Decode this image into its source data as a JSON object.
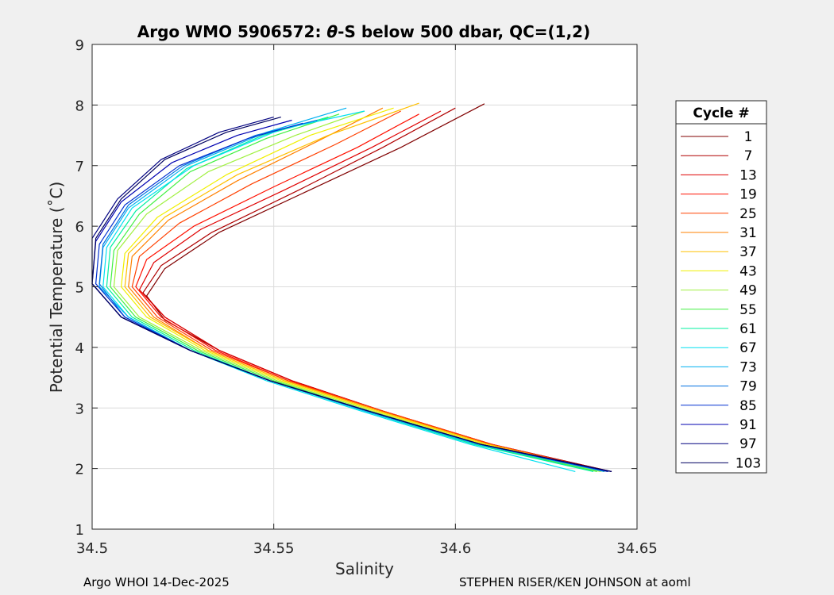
{
  "chart_data": {
    "type": "line",
    "title_prefix": "Argo WMO 5906572: ",
    "title_symbol": "θ",
    "title_suffix": "-S below 500 dbar,  QC=(1,2)",
    "xlabel": "Salinity",
    "ylabel": "Potential Temperature (˚C)",
    "xlim": [
      34.5,
      34.65
    ],
    "ylim": [
      1,
      9
    ],
    "xticks": [
      34.5,
      34.55,
      34.6,
      34.65
    ],
    "xtick_labels": [
      "34.5",
      "34.55",
      "34.6",
      "34.65"
    ],
    "yticks": [
      1,
      2,
      3,
      4,
      5,
      6,
      7,
      8,
      9
    ],
    "ytick_labels": [
      "1",
      "2",
      "3",
      "4",
      "5",
      "6",
      "7",
      "8",
      "9"
    ],
    "grid": true,
    "legend_title": "Cycle #",
    "legend_position": "right",
    "legend": [
      {
        "label": "1",
        "color": "#800000"
      },
      {
        "label": "7",
        "color": "#b00000"
      },
      {
        "label": "13",
        "color": "#e00000"
      },
      {
        "label": "19",
        "color": "#ff1000"
      },
      {
        "label": "25",
        "color": "#ff4000"
      },
      {
        "label": "31",
        "color": "#ff8000"
      },
      {
        "label": "37",
        "color": "#ffc000"
      },
      {
        "label": "43",
        "color": "#f0f000"
      },
      {
        "label": "49",
        "color": "#a0f040"
      },
      {
        "label": "55",
        "color": "#40f040"
      },
      {
        "label": "61",
        "color": "#00f0a0"
      },
      {
        "label": "67",
        "color": "#00e0f0"
      },
      {
        "label": "73",
        "color": "#00b0f0"
      },
      {
        "label": "79",
        "color": "#0070e0"
      },
      {
        "label": "85",
        "color": "#0030d0"
      },
      {
        "label": "91",
        "color": "#0000b0"
      },
      {
        "label": "97",
        "color": "#000080"
      },
      {
        "label": "103",
        "color": "#000060"
      }
    ],
    "series": [
      {
        "name": "1",
        "color": "#800000",
        "points": [
          [
            34.643,
            1.95
          ],
          [
            34.61,
            2.4
          ],
          [
            34.58,
            2.95
          ],
          [
            34.555,
            3.45
          ],
          [
            34.535,
            3.95
          ],
          [
            34.52,
            4.45
          ],
          [
            34.515,
            4.85
          ],
          [
            34.52,
            5.3
          ],
          [
            34.535,
            5.9
          ],
          [
            34.56,
            6.6
          ],
          [
            34.585,
            7.3
          ],
          [
            34.608,
            8.02
          ]
        ]
      },
      {
        "name": "7",
        "color": "#b00000",
        "points": [
          [
            34.643,
            1.95
          ],
          [
            34.61,
            2.4
          ],
          [
            34.58,
            2.95
          ],
          [
            34.555,
            3.45
          ],
          [
            34.535,
            3.95
          ],
          [
            34.52,
            4.5
          ],
          [
            34.514,
            4.9
          ],
          [
            34.519,
            5.35
          ],
          [
            34.533,
            5.9
          ],
          [
            34.557,
            6.6
          ],
          [
            34.58,
            7.3
          ],
          [
            34.6,
            7.95
          ]
        ]
      },
      {
        "name": "13",
        "color": "#e00000",
        "points": [
          [
            34.642,
            1.95
          ],
          [
            34.61,
            2.4
          ],
          [
            34.58,
            2.95
          ],
          [
            34.555,
            3.45
          ],
          [
            34.535,
            3.95
          ],
          [
            34.52,
            4.5
          ],
          [
            34.513,
            4.95
          ],
          [
            34.517,
            5.4
          ],
          [
            34.53,
            5.95
          ],
          [
            34.553,
            6.6
          ],
          [
            34.577,
            7.3
          ],
          [
            34.596,
            7.9
          ]
        ]
      },
      {
        "name": "19",
        "color": "#ff1000",
        "points": [
          [
            34.642,
            1.95
          ],
          [
            34.61,
            2.4
          ],
          [
            34.58,
            2.95
          ],
          [
            34.554,
            3.45
          ],
          [
            34.534,
            3.95
          ],
          [
            34.519,
            4.5
          ],
          [
            34.512,
            5.0
          ],
          [
            34.515,
            5.45
          ],
          [
            34.528,
            6.0
          ],
          [
            34.55,
            6.65
          ],
          [
            34.573,
            7.3
          ],
          [
            34.59,
            7.85
          ]
        ]
      },
      {
        "name": "25",
        "color": "#ff4000",
        "points": [
          [
            34.642,
            1.95
          ],
          [
            34.61,
            2.4
          ],
          [
            34.58,
            2.95
          ],
          [
            34.554,
            3.45
          ],
          [
            34.533,
            3.95
          ],
          [
            34.518,
            4.5
          ],
          [
            34.511,
            5.0
          ],
          [
            34.513,
            5.5
          ],
          [
            34.524,
            6.05
          ],
          [
            34.544,
            6.7
          ],
          [
            34.567,
            7.35
          ],
          [
            34.585,
            7.9
          ]
        ]
      },
      {
        "name": "31",
        "color": "#ff8000",
        "points": [
          [
            34.641,
            1.95
          ],
          [
            34.609,
            2.4
          ],
          [
            34.579,
            2.95
          ],
          [
            34.553,
            3.45
          ],
          [
            34.532,
            3.95
          ],
          [
            34.517,
            4.5
          ],
          [
            34.51,
            5.0
          ],
          [
            34.511,
            5.5
          ],
          [
            34.521,
            6.1
          ],
          [
            34.54,
            6.75
          ],
          [
            34.562,
            7.4
          ],
          [
            34.58,
            7.95
          ]
        ]
      },
      {
        "name": "37",
        "color": "#ffc000",
        "points": [
          [
            34.641,
            1.95
          ],
          [
            34.609,
            2.4
          ],
          [
            34.579,
            2.95
          ],
          [
            34.553,
            3.45
          ],
          [
            34.532,
            3.95
          ],
          [
            34.516,
            4.5
          ],
          [
            34.509,
            5.0
          ],
          [
            34.51,
            5.55
          ],
          [
            34.52,
            6.15
          ],
          [
            34.54,
            6.85
          ],
          [
            34.565,
            7.5
          ],
          [
            34.59,
            8.03
          ]
        ]
      },
      {
        "name": "43",
        "color": "#f0f000",
        "points": [
          [
            34.64,
            1.95
          ],
          [
            34.608,
            2.4
          ],
          [
            34.578,
            2.95
          ],
          [
            34.552,
            3.45
          ],
          [
            34.531,
            3.95
          ],
          [
            34.515,
            4.5
          ],
          [
            34.508,
            5.0
          ],
          [
            34.509,
            5.55
          ],
          [
            34.518,
            6.15
          ],
          [
            34.537,
            6.85
          ],
          [
            34.56,
            7.5
          ],
          [
            34.583,
            7.95
          ]
        ]
      },
      {
        "name": "49",
        "color": "#a0f040",
        "points": [
          [
            34.64,
            1.95
          ],
          [
            34.607,
            2.4
          ],
          [
            34.577,
            2.95
          ],
          [
            34.551,
            3.45
          ],
          [
            34.53,
            3.95
          ],
          [
            34.513,
            4.5
          ],
          [
            34.506,
            5.0
          ],
          [
            34.507,
            5.6
          ],
          [
            34.515,
            6.2
          ],
          [
            34.532,
            6.9
          ],
          [
            34.556,
            7.5
          ],
          [
            34.575,
            7.9
          ]
        ]
      },
      {
        "name": "55",
        "color": "#40f040",
        "points": [
          [
            34.639,
            1.95
          ],
          [
            34.606,
            2.4
          ],
          [
            34.576,
            2.95
          ],
          [
            34.55,
            3.45
          ],
          [
            34.529,
            3.95
          ],
          [
            34.512,
            4.5
          ],
          [
            34.505,
            5.0
          ],
          [
            34.506,
            5.6
          ],
          [
            34.513,
            6.2
          ],
          [
            34.527,
            6.9
          ],
          [
            34.548,
            7.45
          ],
          [
            34.568,
            7.85
          ]
        ]
      },
      {
        "name": "61",
        "color": "#00f0a0",
        "points": [
          [
            34.638,
            1.95
          ],
          [
            34.605,
            2.4
          ],
          [
            34.575,
            2.95
          ],
          [
            34.549,
            3.45
          ],
          [
            34.528,
            3.95
          ],
          [
            34.511,
            4.5
          ],
          [
            34.504,
            5.0
          ],
          [
            34.505,
            5.65
          ],
          [
            34.512,
            6.25
          ],
          [
            34.526,
            6.95
          ],
          [
            34.547,
            7.5
          ],
          [
            34.565,
            7.8
          ]
        ]
      },
      {
        "name": "67",
        "color": "#00e0f0",
        "points": [
          [
            34.633,
            1.95
          ],
          [
            34.604,
            2.4
          ],
          [
            34.574,
            2.95
          ],
          [
            34.548,
            3.45
          ],
          [
            34.527,
            3.95
          ],
          [
            34.51,
            4.5
          ],
          [
            34.503,
            5.0
          ],
          [
            34.504,
            5.65
          ],
          [
            34.511,
            6.3
          ],
          [
            34.528,
            7.0
          ],
          [
            34.552,
            7.6
          ],
          [
            34.575,
            7.9
          ]
        ]
      },
      {
        "name": "73",
        "color": "#00b0f0",
        "points": [
          [
            34.641,
            1.95
          ],
          [
            34.606,
            2.4
          ],
          [
            34.575,
            2.95
          ],
          [
            34.549,
            3.45
          ],
          [
            34.527,
            3.95
          ],
          [
            34.51,
            4.5
          ],
          [
            34.502,
            5.0
          ],
          [
            34.503,
            5.65
          ],
          [
            34.51,
            6.3
          ],
          [
            34.526,
            7.0
          ],
          [
            34.548,
            7.55
          ],
          [
            34.57,
            7.95
          ]
        ]
      },
      {
        "name": "79",
        "color": "#0070e0",
        "points": [
          [
            34.642,
            1.95
          ],
          [
            34.607,
            2.4
          ],
          [
            34.576,
            2.95
          ],
          [
            34.549,
            3.45
          ],
          [
            34.527,
            3.95
          ],
          [
            34.509,
            4.5
          ],
          [
            34.502,
            5.05
          ],
          [
            34.503,
            5.7
          ],
          [
            34.51,
            6.35
          ],
          [
            34.525,
            7.0
          ],
          [
            34.545,
            7.5
          ],
          [
            34.562,
            7.75
          ]
        ]
      },
      {
        "name": "85",
        "color": "#0030d0",
        "points": [
          [
            34.642,
            1.95
          ],
          [
            34.607,
            2.4
          ],
          [
            34.576,
            2.95
          ],
          [
            34.549,
            3.45
          ],
          [
            34.527,
            3.95
          ],
          [
            34.509,
            4.5
          ],
          [
            34.501,
            5.05
          ],
          [
            34.502,
            5.7
          ],
          [
            34.509,
            6.35
          ],
          [
            34.524,
            7.0
          ],
          [
            34.543,
            7.45
          ],
          [
            34.558,
            7.7
          ]
        ]
      },
      {
        "name": "91",
        "color": "#0000b0",
        "points": [
          [
            34.643,
            1.95
          ],
          [
            34.607,
            2.4
          ],
          [
            34.576,
            2.95
          ],
          [
            34.549,
            3.45
          ],
          [
            34.527,
            3.95
          ],
          [
            34.508,
            4.5
          ],
          [
            34.5,
            5.05
          ],
          [
            34.501,
            5.75
          ],
          [
            34.508,
            6.4
          ],
          [
            34.522,
            7.05
          ],
          [
            34.54,
            7.5
          ],
          [
            34.555,
            7.75
          ]
        ]
      },
      {
        "name": "97",
        "color": "#000080",
        "points": [
          [
            34.643,
            1.95
          ],
          [
            34.607,
            2.4
          ],
          [
            34.576,
            2.95
          ],
          [
            34.549,
            3.45
          ],
          [
            34.527,
            3.95
          ],
          [
            34.508,
            4.5
          ],
          [
            34.5,
            5.05
          ],
          [
            34.5,
            5.8
          ],
          [
            34.507,
            6.45
          ],
          [
            34.519,
            7.1
          ],
          [
            34.535,
            7.55
          ],
          [
            34.55,
            7.8
          ]
        ]
      },
      {
        "name": "103",
        "color": "#000060",
        "points": [
          [
            34.643,
            1.95
          ],
          [
            34.607,
            2.4
          ],
          [
            34.576,
            2.95
          ],
          [
            34.549,
            3.45
          ],
          [
            34.527,
            3.95
          ],
          [
            34.508,
            4.5
          ],
          [
            34.5,
            5.05
          ],
          [
            34.501,
            5.8
          ],
          [
            34.508,
            6.45
          ],
          [
            34.52,
            7.1
          ],
          [
            34.537,
            7.55
          ],
          [
            34.552,
            7.8
          ]
        ]
      }
    ]
  },
  "footer": {
    "left": "Argo WHOI 14-Dec-2025",
    "right": "STEPHEN RISER/KEN JOHNSON at aoml"
  }
}
